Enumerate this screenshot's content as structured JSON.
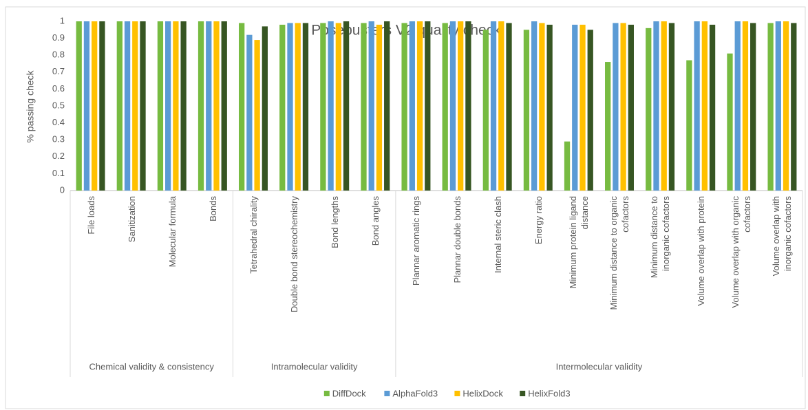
{
  "chart_data": {
    "type": "bar",
    "title": "Posebusters V2 quality check",
    "y_label": "% passing check",
    "categories": [
      "File loads",
      "Sanitization",
      "Molecular formula",
      "Bonds",
      "Tetrahedral chirality",
      "Double bond stereochemistry",
      "Bond lengths",
      "Bond angles",
      "Plannar aromatic rings",
      "Plannar double bonds",
      "Internal steric clash",
      "Energy ratio",
      "Minimum protein ligand distance",
      "Minimum distance to organic cofactors",
      "Minimum distance to inorganic cofactors",
      "Volume overlap with protein",
      "Volume overlap with organic cofactors",
      "Volume overlap with inorganic cofactors"
    ],
    "category_groups": [
      {
        "label": "Chemical validity & consistency",
        "count": 4
      },
      {
        "label": "Intramolecular validity",
        "count": 4
      },
      {
        "label": "Intermolecular validity",
        "count": 10
      }
    ],
    "series": [
      {
        "name": "DiffDock",
        "color": "#77bb41",
        "values": [
          1,
          1,
          1,
          1,
          0.99,
          0.98,
          0.99,
          0.99,
          0.99,
          0.99,
          0.95,
          0.95,
          0.29,
          0.76,
          0.96,
          0.77,
          0.81,
          0.99
        ]
      },
      {
        "name": "AlphaFold3",
        "color": "#5b9bd5",
        "values": [
          1,
          1,
          1,
          1,
          0.92,
          0.99,
          1,
          1,
          1,
          1,
          1,
          1,
          0.98,
          0.99,
          1,
          1,
          1,
          1
        ]
      },
      {
        "name": "HelixDock",
        "color": "#ffc000",
        "values": [
          1,
          1,
          1,
          1,
          0.89,
          0.99,
          0.99,
          0.98,
          1,
          1,
          1,
          0.99,
          0.98,
          0.99,
          1,
          1,
          1,
          1
        ]
      },
      {
        "name": "HelixFold3",
        "color": "#375623",
        "values": [
          1,
          1,
          1,
          1,
          0.97,
          0.99,
          1,
          1,
          1,
          1,
          0.99,
          0.98,
          0.95,
          0.98,
          0.99,
          0.98,
          0.99,
          0.99
        ]
      }
    ],
    "ylim": [
      0,
      1
    ],
    "yticks": [
      0,
      0.1,
      0.2,
      0.3,
      0.4,
      0.5,
      0.6,
      0.7,
      0.8,
      0.9,
      1
    ],
    "grid": false,
    "legend": "bottom"
  }
}
